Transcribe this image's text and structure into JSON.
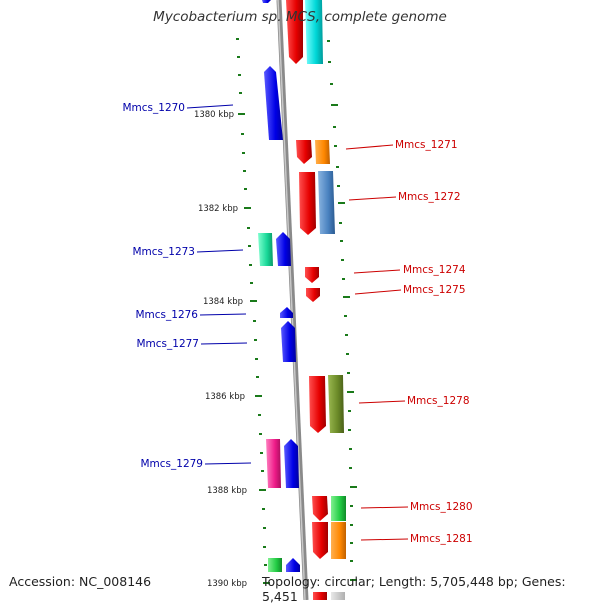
{
  "title": "Mycobacterium sp. MCS, complete genome",
  "accession": "Accession: NC_008146",
  "summary": "Topology: circular; Length: 5,705,448 bp; Genes: 5,451",
  "ticks": [
    "1380 kbp",
    "1382 kbp",
    "1384 kbp",
    "1386 kbp",
    "1388 kbp",
    "1390 kbp"
  ],
  "labels": {
    "mmcs_1270": "Mmcs_1270",
    "mmcs_1271": "Mmcs_1271",
    "mmcs_1272": "Mmcs_1272",
    "mmcs_1273": "Mmcs_1273",
    "mmcs_1274": "Mmcs_1274",
    "mmcs_1275": "Mmcs_1275",
    "mmcs_1276": "Mmcs_1276",
    "mmcs_1277": "Mmcs_1277",
    "mmcs_1278": "Mmcs_1278",
    "mmcs_1279": "Mmcs_1279",
    "mmcs_1280": "Mmcs_1280",
    "mmcs_1281": "Mmcs_1281"
  },
  "colors": {
    "reverse_label": "#0000aa",
    "forward_label": "#cc0000",
    "backbone": "#888888",
    "tick": "#1a7a1a",
    "blue_gene": "#0a0ae0",
    "red_gene": "#e00000",
    "cyan": "#00d8d8",
    "orange": "#ff8800",
    "steelblue": "#4a82c0",
    "olive": "#6b8a28",
    "green": "#22cc44",
    "magenta": "#ee1a88",
    "seagreen": "#18d898"
  }
}
